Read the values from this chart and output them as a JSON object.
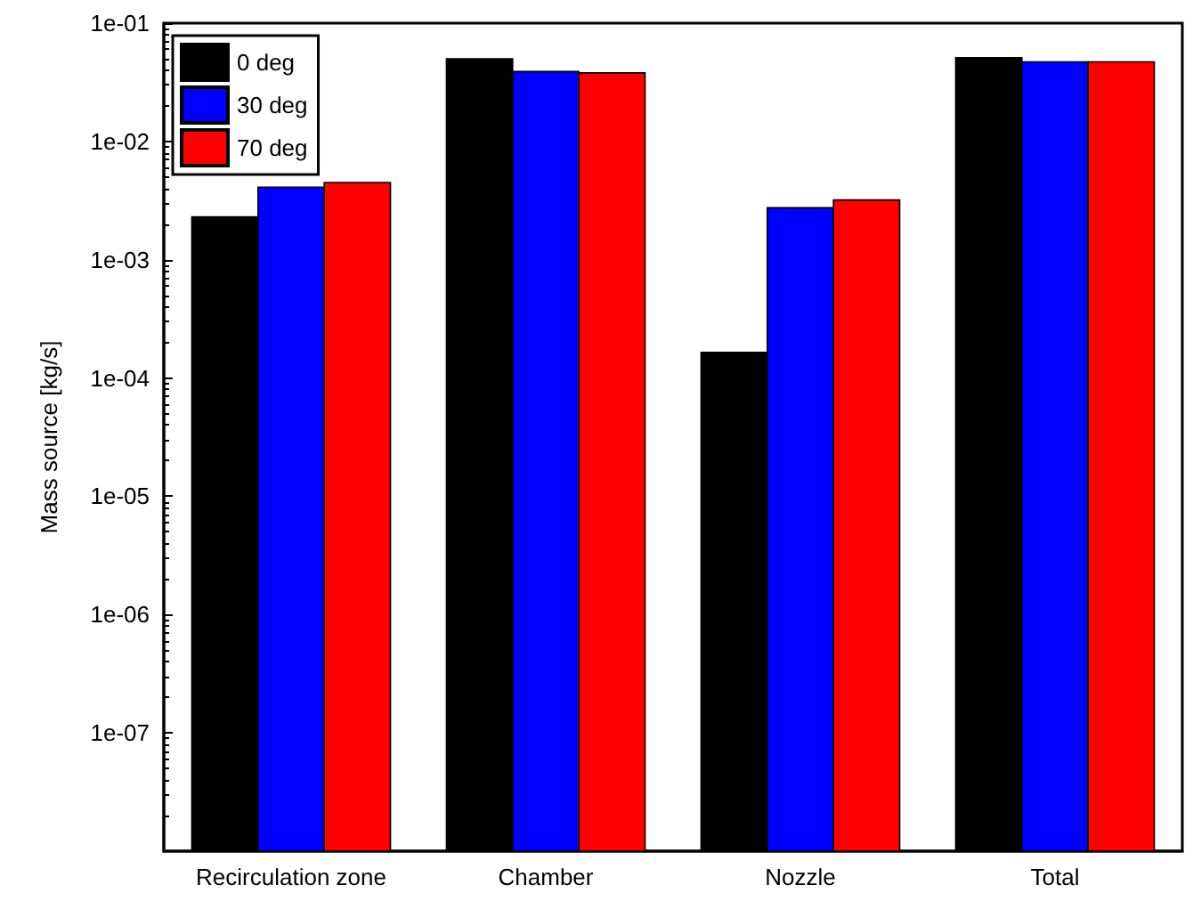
{
  "chart_data": {
    "type": "bar",
    "ylabel": "Mass source [kg/s]",
    "log": "y",
    "grid": false,
    "legend": "top left",
    "categories": [
      "Recirculation zone",
      "Chamber",
      "Nozzle",
      "Total"
    ],
    "series": [
      {
        "name": "0 deg",
        "color": "#000000",
        "values": [
          0.0023,
          0.05,
          0.000165,
          0.051
        ]
      },
      {
        "name": "30 deg",
        "color": "#0000ff",
        "values": [
          0.0041,
          0.039,
          0.00275,
          0.047
        ]
      },
      {
        "name": "70 deg",
        "color": "#ff0000",
        "values": [
          0.0045,
          0.038,
          0.0032,
          0.047
        ]
      }
    ],
    "ylim": [
      1e-08,
      0.1
    ],
    "yticks": [
      {
        "value": 1e-07,
        "label": "1e-07"
      },
      {
        "value": 1e-06,
        "label": "1e-06"
      },
      {
        "value": 1e-05,
        "label": "1e-05"
      },
      {
        "value": 0.0001,
        "label": "1e-04"
      },
      {
        "value": 0.001,
        "label": "1e-03"
      },
      {
        "value": 0.01,
        "label": "1e-02"
      },
      {
        "value": 0.1,
        "label": "1e-01"
      }
    ]
  }
}
